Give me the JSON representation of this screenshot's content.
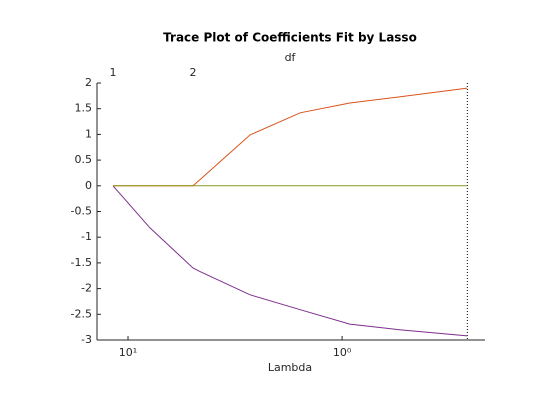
{
  "chart_data": {
    "type": "line",
    "title": "Trace Plot of Coefficients Fit by Lasso",
    "xlabel": "Lambda",
    "x2label": "df",
    "x": [
      11.75,
      7.89,
      4.97,
      4.61,
      2.69,
      1.57,
      0.92,
      0.54,
      0.26
    ],
    "series": [
      {
        "color": "#7e2f8e",
        "values": [
          0,
          -0.82,
          -1.6,
          -1.67,
          -2.12,
          -2.41,
          -2.69,
          -2.8,
          -2.92
        ]
      },
      {
        "color": "#d95319",
        "values": [
          0,
          0,
          0,
          0.12,
          0.99,
          1.42,
          1.61,
          1.73,
          1.9
        ]
      },
      {
        "color": "#8c9a1e",
        "values": [
          0,
          0,
          0,
          0,
          0,
          0,
          0,
          0,
          0
        ]
      }
    ],
    "xscale": "log",
    "xreversed": true,
    "xlim": [
      13.96,
      0.215
    ],
    "xticks": [
      {
        "value": 10,
        "label": "10¹"
      },
      {
        "value": 1,
        "label": "10⁰"
      }
    ],
    "x2ticks": [
      {
        "value": 11.75,
        "label": "1"
      },
      {
        "value": 4.97,
        "label": "2"
      }
    ],
    "ylim": [
      -3,
      2
    ],
    "yticks": [
      -3,
      -2.5,
      -2,
      -1.5,
      -1,
      -0.5,
      0,
      0.5,
      1,
      1.5,
      2
    ]
  }
}
